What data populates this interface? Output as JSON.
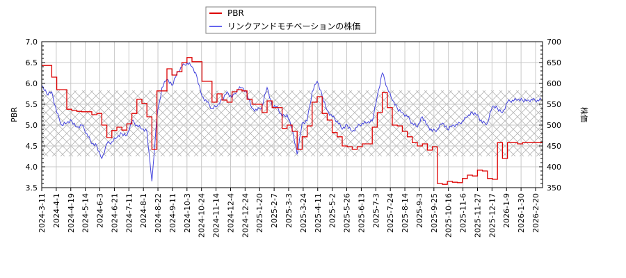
{
  "chart_data": {
    "type": "line",
    "title": "",
    "legend": {
      "position": "top-center",
      "entries": [
        {
          "name": "PBR",
          "color": "#dd0000"
        },
        {
          "name": "リンクアンドモチベーションの株価",
          "color": "#4444dd"
        }
      ]
    },
    "xlabel": "",
    "ylabel_left": "PBR",
    "ylabel_right": "株価",
    "ylim_left": [
      3.5,
      7.0
    ],
    "ylim_right": [
      350,
      700
    ],
    "yticks_left": [
      "3.5",
      "4.0",
      "4.5",
      "5.0",
      "5.5",
      "6.0",
      "6.5",
      "7.0"
    ],
    "yticks_right": [
      "350",
      "400",
      "450",
      "500",
      "550",
      "600",
      "650",
      "700"
    ],
    "x_tick_labels": [
      "2024-3-11",
      "2024-4-1",
      "2024-4-19",
      "2024-5-14",
      "2024-6-3",
      "2024-6-21",
      "2024-7-11",
      "2024-8-1",
      "2024-8-22",
      "2024-9-11",
      "2024-10-3",
      "2024-10-24",
      "2024-11-14",
      "2024-12-4",
      "2024-12-24",
      "2025-1-20",
      "2025-2-7",
      "2025-3-3",
      "2025-3-24",
      "2025-4-11",
      "2025-5-2",
      "2025-5-26",
      "2025-6-13",
      "2025-7-3",
      "2025-7-24",
      "2025-8-14",
      "2025-9-3",
      "2025-9-25",
      "2025-10-16",
      "2025-11-6",
      "2025-11-27",
      "2025-12-17",
      "2026-1-9",
      "2026-1-30",
      "2026-2-20"
    ],
    "grid": true,
    "hatch_band": {
      "pbr_range": [
        4.25,
        5.83
      ],
      "price_range": [
        425,
        583
      ]
    },
    "series": [
      {
        "name": "PBR",
        "axis": "left",
        "color": "#dd0000",
        "x": [
          0,
          1,
          2,
          3,
          4,
          5,
          6,
          7,
          8,
          9,
          10,
          11,
          12,
          13,
          14,
          15,
          16,
          17,
          18,
          19,
          20,
          21,
          22,
          23,
          24,
          25,
          26,
          27,
          28,
          29,
          30,
          31,
          32,
          33,
          34,
          35,
          36,
          37,
          38,
          39,
          40,
          41,
          42,
          43,
          44,
          45,
          46,
          47,
          48,
          49,
          50,
          51,
          52,
          53,
          54,
          55,
          56,
          57,
          58,
          59,
          60,
          61,
          62,
          63,
          64,
          65,
          66,
          67,
          68,
          69,
          70,
          71,
          72,
          73,
          74,
          75,
          76,
          77,
          78,
          79,
          80,
          81,
          82,
          83,
          84,
          85,
          86,
          87,
          88,
          89,
          90,
          91,
          92,
          93,
          94,
          95,
          96,
          97,
          98,
          99,
          100
        ],
        "values": [
          6.43,
          6.43,
          6.15,
          5.85,
          5.85,
          5.38,
          5.35,
          5.33,
          5.32,
          5.32,
          5.25,
          5.28,
          5.0,
          4.7,
          4.87,
          4.95,
          4.88,
          5.03,
          5.28,
          5.62,
          5.52,
          5.2,
          4.42,
          5.82,
          5.82,
          6.35,
          6.2,
          6.28,
          6.5,
          6.62,
          6.52,
          6.52,
          6.05,
          6.05,
          5.55,
          5.75,
          5.6,
          5.55,
          5.8,
          5.85,
          5.82,
          5.62,
          5.5,
          5.5,
          5.3,
          5.58,
          5.42,
          5.42,
          4.92,
          5.0,
          4.85,
          4.42,
          4.72,
          4.98,
          5.55,
          5.68,
          5.28,
          5.12,
          4.82,
          4.72,
          4.5,
          4.48,
          4.42,
          4.48,
          4.55,
          4.55,
          4.95,
          5.3,
          5.78,
          5.42,
          5.0,
          4.98,
          4.85,
          4.72,
          4.58,
          4.5,
          4.55,
          4.4,
          4.48,
          3.6,
          3.58,
          3.65,
          3.63,
          3.62,
          3.72,
          3.8,
          3.78,
          3.92,
          3.9,
          3.72,
          3.7,
          4.58,
          4.2,
          4.58,
          4.58,
          4.55,
          4.58,
          4.58,
          4.58,
          4.58,
          4.58
        ]
      },
      {
        "name": "リンクアンドモチベーションの株価",
        "axis": "right",
        "color": "#4444dd",
        "x": [
          0,
          1,
          2,
          3,
          4,
          5,
          6,
          7,
          8,
          9,
          10,
          11,
          12,
          13,
          14,
          15,
          16,
          17,
          18,
          19,
          20,
          21,
          22,
          23,
          24,
          25,
          26,
          27,
          28,
          29,
          30,
          31,
          32,
          33,
          34,
          35,
          36,
          37,
          38,
          39,
          40,
          41,
          42,
          43,
          44,
          45,
          46,
          47,
          48,
          49,
          50,
          51,
          52,
          53,
          54,
          55,
          56,
          57,
          58,
          59,
          60,
          61,
          62,
          63,
          64,
          65,
          66,
          67,
          68,
          69,
          70,
          71,
          72,
          73,
          74,
          75,
          76,
          77,
          78,
          79,
          80,
          81,
          82,
          83,
          84,
          85,
          86,
          87,
          88,
          89,
          90,
          91,
          92,
          93,
          94,
          95,
          96,
          97,
          98,
          99,
          100
        ],
        "values": [
          595,
          575,
          580,
          530,
          500,
          505,
          510,
          495,
          500,
          480,
          455,
          450,
          420,
          455,
          460,
          470,
          480,
          475,
          510,
          500,
          490,
          485,
          365,
          520,
          590,
          610,
          595,
          625,
          640,
          650,
          640,
          615,
          570,
          555,
          540,
          545,
          560,
          580,
          565,
          585,
          590,
          575,
          540,
          535,
          545,
          590,
          545,
          545,
          520,
          525,
          490,
          430,
          505,
          510,
          580,
          605,
          570,
          535,
          520,
          510,
          490,
          500,
          485,
          495,
          505,
          505,
          510,
          570,
          625,
          590,
          560,
          540,
          530,
          520,
          505,
          495,
          520,
          500,
          485,
          490,
          505,
          490,
          500,
          500,
          510,
          520,
          530,
          525,
          505,
          505,
          545,
          540,
          530,
          555,
          560,
          560,
          560,
          560,
          560,
          560,
          560
        ]
      }
    ]
  },
  "legend": {
    "pbr_label": "PBR",
    "price_label": "リンクアンドモチベーションの株価"
  },
  "axes": {
    "left_title": "PBR",
    "right_title": "株価"
  }
}
